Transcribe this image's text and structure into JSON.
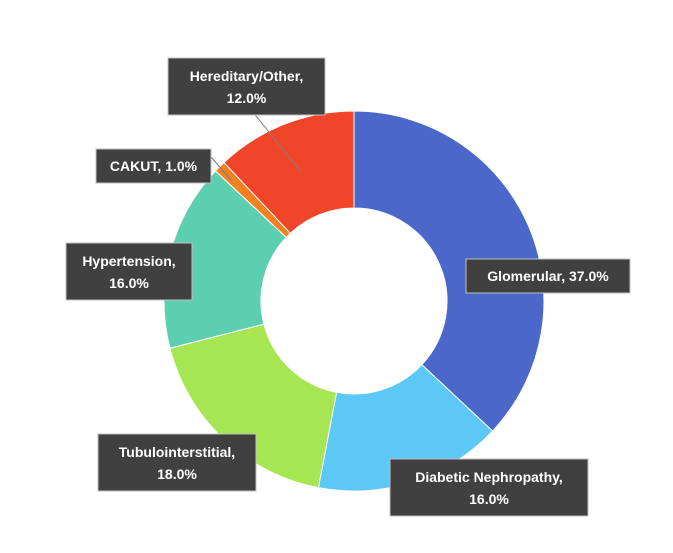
{
  "chart_data": {
    "type": "pie",
    "variant": "donut",
    "title": "",
    "legend": "none",
    "categories": [
      "Glomerular",
      "Diabetic Nephropathy",
      "Tubulointerstitial",
      "Hypertension",
      "CAKUT",
      "Hereditary/Other"
    ],
    "values": [
      37.0,
      16.0,
      18.0,
      16.0,
      1.0,
      12.0
    ],
    "labels": [
      {
        "line1": "Glomerular, 37.0%",
        "line2": ""
      },
      {
        "line1": "Diabetic Nephropathy,",
        "line2": "16.0%"
      },
      {
        "line1": "Tubulointerstitial,",
        "line2": "18.0%"
      },
      {
        "line1": "Hypertension,",
        "line2": "16.0%"
      },
      {
        "line1": "CAKUT, 1.0%",
        "line2": ""
      },
      {
        "line1": "Hereditary/Other,",
        "line2": "12.0%"
      }
    ],
    "colors": [
      "#4a67c9",
      "#5bc8f5",
      "#a6e652",
      "#5ccfb0",
      "#f58020",
      "#f04528"
    ]
  }
}
